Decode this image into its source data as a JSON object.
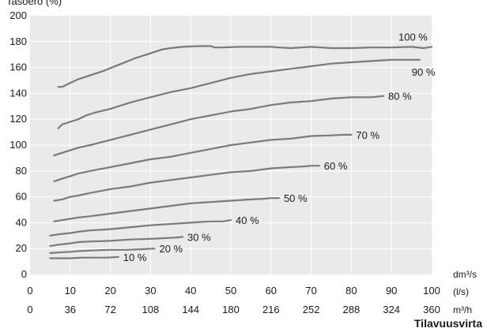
{
  "chart_data": {
    "type": "line",
    "title": "",
    "ylabel": "Tasoero (%)",
    "xlabel": "Tilavuusvirta",
    "ylim": [
      0,
      200
    ],
    "yticks": [
      0,
      20,
      40,
      60,
      80,
      100,
      120,
      140,
      160,
      180,
      200
    ],
    "xlim": [
      0,
      100
    ],
    "x_axes": [
      {
        "unit_label": "dm³/s",
        "ticks": [
          0,
          10,
          20,
          30,
          40,
          50,
          60,
          70,
          80,
          90,
          100
        ],
        "tick_labels": [
          "0",
          "10",
          "20",
          "30",
          "40",
          "50",
          "60",
          "70",
          "80",
          "90",
          "100"
        ]
      },
      {
        "unit_label": "(l/s)",
        "ticks": [],
        "tick_labels": []
      },
      {
        "unit_label": "m³/h",
        "ticks": [
          0,
          10,
          20,
          30,
          40,
          50,
          60,
          70,
          80,
          90,
          100
        ],
        "tick_labels": [
          "0",
          "36",
          "72",
          "108",
          "144",
          "180",
          "216",
          "252",
          "288",
          "324",
          "360"
        ]
      }
    ],
    "grid": true,
    "plot_background": "#eaeaea",
    "line_color": "#7a7a7a",
    "series": [
      {
        "name": "100 %",
        "x": [
          7,
          8,
          10,
          12,
          15,
          18,
          22,
          26,
          30,
          33,
          35,
          38,
          42,
          45,
          46,
          48,
          52,
          56,
          60,
          62,
          65,
          70,
          75,
          80,
          85,
          90,
          95,
          98,
          100
        ],
        "y": [
          145,
          145,
          148,
          151,
          154,
          157,
          162,
          167,
          171,
          174,
          175,
          176,
          176.5,
          176.5,
          175.5,
          175.5,
          176,
          176,
          176,
          175.5,
          175,
          176,
          175,
          175,
          175.5,
          175.5,
          176,
          175,
          176
        ]
      },
      {
        "name": "90 %",
        "x": [
          7,
          8,
          10,
          12,
          14,
          16,
          20,
          25,
          30,
          35,
          40,
          45,
          50,
          55,
          60,
          65,
          70,
          75,
          80,
          85,
          90,
          93,
          95,
          97
        ],
        "y": [
          113,
          116,
          118,
          120,
          123,
          125,
          128,
          133,
          137,
          141,
          144,
          148,
          152,
          155,
          157,
          159,
          161,
          163,
          164,
          165,
          166,
          166,
          166,
          166
        ]
      },
      {
        "name": "80 %",
        "x": [
          6,
          8,
          10,
          12,
          15,
          20,
          25,
          30,
          35,
          40,
          45,
          50,
          55,
          60,
          65,
          70,
          75,
          80,
          85,
          88
        ],
        "y": [
          92,
          94,
          96,
          98,
          100,
          104,
          108,
          112,
          116,
          120,
          123,
          126,
          128,
          131,
          133,
          134,
          136,
          137,
          137,
          138
        ]
      },
      {
        "name": "70 %",
        "x": [
          6,
          8,
          10,
          12,
          15,
          20,
          25,
          30,
          35,
          40,
          45,
          50,
          55,
          60,
          65,
          70,
          75,
          78,
          80
        ],
        "y": [
          72,
          74,
          76,
          78,
          80,
          83,
          86,
          89,
          91,
          94,
          97,
          100,
          102,
          104,
          105,
          107,
          107.5,
          108,
          108
        ]
      },
      {
        "name": "60 %",
        "x": [
          6,
          8,
          10,
          12,
          15,
          20,
          25,
          30,
          35,
          40,
          45,
          50,
          55,
          60,
          65,
          68,
          70,
          72
        ],
        "y": [
          57,
          58,
          60,
          61,
          63,
          66,
          68,
          71,
          73,
          75,
          77,
          79,
          80,
          82,
          83,
          83.5,
          84,
          84
        ]
      },
      {
        "name": "50 %",
        "x": [
          6,
          8,
          10,
          12,
          15,
          20,
          25,
          30,
          35,
          40,
          45,
          50,
          55,
          58,
          60,
          62
        ],
        "y": [
          41,
          42,
          43,
          44,
          45,
          47,
          49,
          51,
          53,
          55,
          56,
          57,
          58,
          58.5,
          59,
          59
        ]
      },
      {
        "name": "40 %",
        "x": [
          5,
          7,
          10,
          12,
          15,
          20,
          25,
          30,
          35,
          40,
          42,
          45,
          48,
          50
        ],
        "y": [
          30,
          31,
          32,
          33,
          34,
          35,
          36.5,
          38,
          39,
          40,
          40.5,
          41,
          41,
          42
        ]
      },
      {
        "name": "30 %",
        "x": [
          5,
          7,
          10,
          12,
          15,
          20,
          25,
          30,
          33,
          36,
          38
        ],
        "y": [
          22,
          23,
          24,
          25,
          25.5,
          26,
          27,
          27.5,
          28,
          28.5,
          29
        ]
      },
      {
        "name": "20 %",
        "x": [
          5,
          7,
          10,
          12,
          15,
          20,
          24,
          28,
          31
        ],
        "y": [
          16.5,
          17,
          17.5,
          18,
          18.5,
          19,
          19,
          19.5,
          20
        ]
      },
      {
        "name": "10 %",
        "x": [
          5,
          7,
          10,
          13,
          16,
          19,
          22
        ],
        "y": [
          12.5,
          12.5,
          12.5,
          13,
          13,
          13,
          13.5
        ]
      }
    ]
  }
}
